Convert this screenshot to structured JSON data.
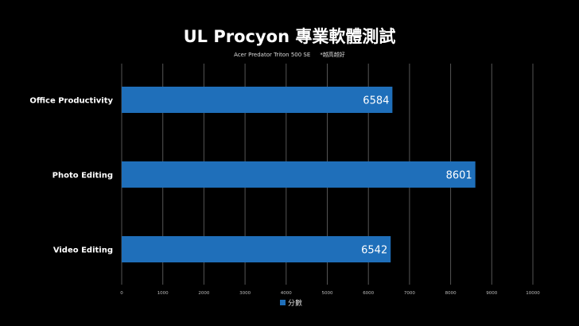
{
  "chart_data": {
    "type": "bar",
    "orientation": "horizontal",
    "title": "UL Procyon 專業軟體測試",
    "subtitle": "Acer Predator Triton 500 SE",
    "note": "*越高越好",
    "categories": [
      "Office Productivity",
      "Photo Editing",
      "Video Editing"
    ],
    "series": [
      {
        "name": "分數",
        "values": [
          6584,
          8601,
          6542
        ],
        "color": "#1f6fba"
      }
    ],
    "xlim": [
      0,
      10000
    ],
    "xticks": [
      0,
      1000,
      2000,
      3000,
      4000,
      5000,
      6000,
      7000,
      8000,
      9000,
      10000
    ],
    "grid": true,
    "legend": "bottom"
  }
}
